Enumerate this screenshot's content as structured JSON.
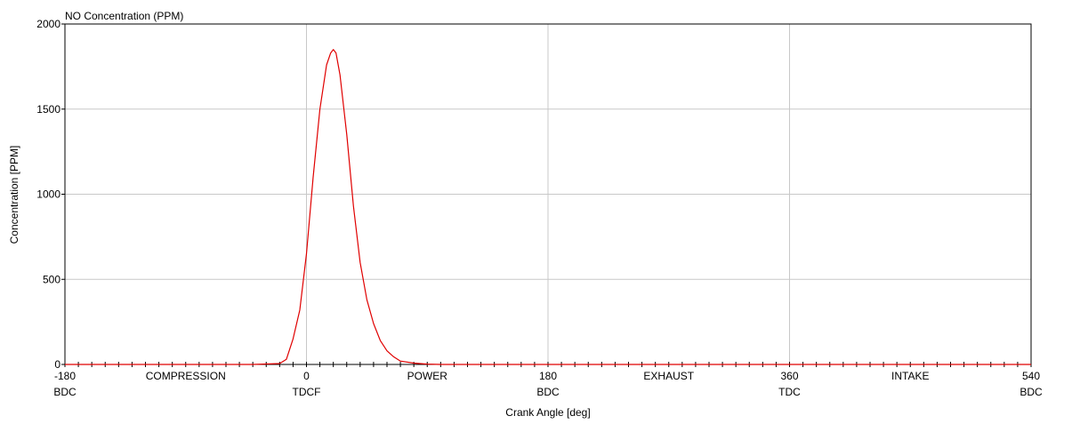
{
  "chart_data": {
    "type": "line",
    "title": "NO Concentration (PPM)",
    "xlabel": "Crank Angle [deg]",
    "ylabel": "Concentration [PPM]",
    "xlim": [
      -180,
      540
    ],
    "ylim": [
      0,
      2000
    ],
    "grid": true,
    "x_ticks": [
      -180,
      0,
      180,
      360,
      540
    ],
    "y_ticks": [
      0,
      500,
      1000,
      1500,
      2000
    ],
    "x_tick_labels": [
      "-180",
      "0",
      "180",
      "360",
      "540"
    ],
    "y_tick_labels": [
      "0",
      "500",
      "1000",
      "1500",
      "2000"
    ],
    "x_sublabels": [
      {
        "x": -180,
        "text": "BDC"
      },
      {
        "x": 0,
        "text": "TDCF"
      },
      {
        "x": 180,
        "text": "BDC"
      },
      {
        "x": 360,
        "text": "TDC"
      },
      {
        "x": 540,
        "text": "BDC"
      }
    ],
    "stroke_labels": [
      {
        "x": -90,
        "text": "COMPRESSION"
      },
      {
        "x": 90,
        "text": "POWER"
      },
      {
        "x": 270,
        "text": "EXHAUST"
      },
      {
        "x": 450,
        "text": "INTAKE"
      }
    ],
    "minor_tick_step": 10,
    "series": [
      {
        "color": "#e00000",
        "x": [
          -180,
          -40,
          -20,
          -15,
          -10,
          -5,
          0,
          5,
          10,
          15,
          18,
          20,
          22,
          25,
          30,
          35,
          40,
          45,
          50,
          55,
          60,
          65,
          70,
          80,
          90,
          100,
          540
        ],
        "y": [
          0,
          0,
          5,
          30,
          150,
          320,
          650,
          1100,
          1500,
          1760,
          1830,
          1850,
          1830,
          1700,
          1350,
          930,
          600,
          380,
          240,
          140,
          80,
          45,
          20,
          8,
          2,
          0,
          0
        ]
      }
    ]
  }
}
